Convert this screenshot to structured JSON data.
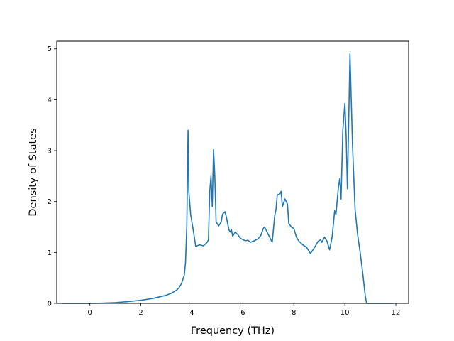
{
  "chart_data": {
    "type": "line",
    "title": "",
    "xlabel": "Frequency (THz)",
    "ylabel": "Density of States",
    "xlim": [
      -1.3,
      12.5
    ],
    "ylim": [
      0,
      5.15
    ],
    "xticks": [
      0,
      2,
      4,
      6,
      8,
      10,
      12
    ],
    "yticks": [
      0,
      1,
      2,
      3,
      4,
      5
    ],
    "grid": false,
    "legend": "none",
    "series": [
      {
        "color": "#1f77b4",
        "points": [
          [
            -1.1,
            0.0
          ],
          [
            -0.5,
            0.0
          ],
          [
            0.0,
            0.0
          ],
          [
            0.5,
            0.005
          ],
          [
            1.0,
            0.015
          ],
          [
            1.5,
            0.035
          ],
          [
            2.0,
            0.06
          ],
          [
            2.5,
            0.1
          ],
          [
            3.0,
            0.16
          ],
          [
            3.2,
            0.2
          ],
          [
            3.4,
            0.26
          ],
          [
            3.5,
            0.31
          ],
          [
            3.6,
            0.4
          ],
          [
            3.7,
            0.55
          ],
          [
            3.75,
            0.8
          ],
          [
            3.8,
            1.5
          ],
          [
            3.85,
            3.4
          ],
          [
            3.88,
            2.2
          ],
          [
            3.95,
            1.75
          ],
          [
            4.05,
            1.45
          ],
          [
            4.15,
            1.12
          ],
          [
            4.3,
            1.15
          ],
          [
            4.45,
            1.13
          ],
          [
            4.6,
            1.2
          ],
          [
            4.65,
            1.25
          ],
          [
            4.7,
            2.2
          ],
          [
            4.75,
            2.5
          ],
          [
            4.8,
            1.9
          ],
          [
            4.85,
            3.02
          ],
          [
            4.9,
            2.5
          ],
          [
            4.95,
            1.6
          ],
          [
            5.05,
            1.52
          ],
          [
            5.15,
            1.6
          ],
          [
            5.2,
            1.75
          ],
          [
            5.3,
            1.8
          ],
          [
            5.35,
            1.7
          ],
          [
            5.45,
            1.45
          ],
          [
            5.5,
            1.4
          ],
          [
            5.55,
            1.45
          ],
          [
            5.6,
            1.32
          ],
          [
            5.7,
            1.4
          ],
          [
            5.8,
            1.35
          ],
          [
            5.9,
            1.28
          ],
          [
            6.0,
            1.25
          ],
          [
            6.1,
            1.23
          ],
          [
            6.2,
            1.24
          ],
          [
            6.3,
            1.2
          ],
          [
            6.45,
            1.23
          ],
          [
            6.6,
            1.27
          ],
          [
            6.7,
            1.33
          ],
          [
            6.8,
            1.47
          ],
          [
            6.85,
            1.5
          ],
          [
            6.95,
            1.4
          ],
          [
            7.05,
            1.3
          ],
          [
            7.15,
            1.2
          ],
          [
            7.25,
            1.72
          ],
          [
            7.3,
            1.85
          ],
          [
            7.35,
            2.13
          ],
          [
            7.45,
            2.15
          ],
          [
            7.5,
            2.2
          ],
          [
            7.55,
            1.9
          ],
          [
            7.65,
            2.05
          ],
          [
            7.75,
            1.95
          ],
          [
            7.8,
            1.57
          ],
          [
            7.9,
            1.5
          ],
          [
            8.0,
            1.47
          ],
          [
            8.1,
            1.3
          ],
          [
            8.2,
            1.22
          ],
          [
            8.35,
            1.15
          ],
          [
            8.5,
            1.1
          ],
          [
            8.6,
            1.02
          ],
          [
            8.65,
            0.98
          ],
          [
            8.75,
            1.05
          ],
          [
            8.85,
            1.13
          ],
          [
            8.95,
            1.22
          ],
          [
            9.05,
            1.25
          ],
          [
            9.1,
            1.2
          ],
          [
            9.2,
            1.3
          ],
          [
            9.3,
            1.22
          ],
          [
            9.4,
            1.05
          ],
          [
            9.5,
            1.3
          ],
          [
            9.6,
            1.82
          ],
          [
            9.65,
            1.75
          ],
          [
            9.75,
            2.3
          ],
          [
            9.8,
            2.45
          ],
          [
            9.85,
            2.05
          ],
          [
            9.92,
            3.4
          ],
          [
            10.0,
            3.93
          ],
          [
            10.05,
            3.3
          ],
          [
            10.1,
            2.25
          ],
          [
            10.2,
            4.9
          ],
          [
            10.3,
            3.1
          ],
          [
            10.4,
            1.85
          ],
          [
            10.5,
            1.35
          ],
          [
            10.6,
            1.0
          ],
          [
            10.7,
            0.6
          ],
          [
            10.8,
            0.15
          ],
          [
            10.85,
            0.0
          ],
          [
            11.0,
            0.0
          ],
          [
            11.5,
            0.0
          ],
          [
            11.9,
            0.0
          ]
        ]
      }
    ]
  }
}
